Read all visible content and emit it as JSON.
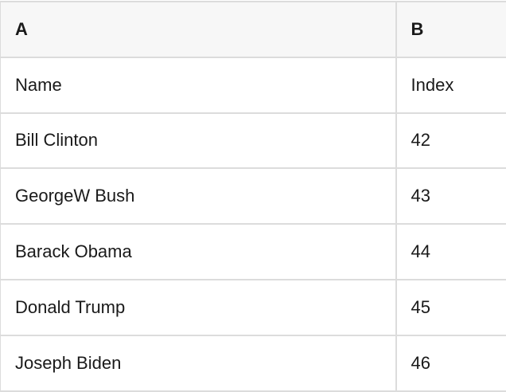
{
  "table": {
    "columns": [
      {
        "id": "A",
        "label": "A"
      },
      {
        "id": "B",
        "label": "B"
      }
    ],
    "rows": [
      {
        "A": "Name",
        "B": "Index"
      },
      {
        "A": "Bill Clinton",
        "B": "42"
      },
      {
        "A": "GeorgeW Bush",
        "B": "43"
      },
      {
        "A": "Barack Obama",
        "B": "44"
      },
      {
        "A": "Donald Trump",
        "B": "45"
      },
      {
        "A": "Joseph Biden",
        "B": "46"
      }
    ]
  },
  "colors": {
    "header_bg": "#f7f7f7",
    "border": "#dcdcdc",
    "text": "#1a1a1a",
    "body_bg": "#ffffff"
  }
}
